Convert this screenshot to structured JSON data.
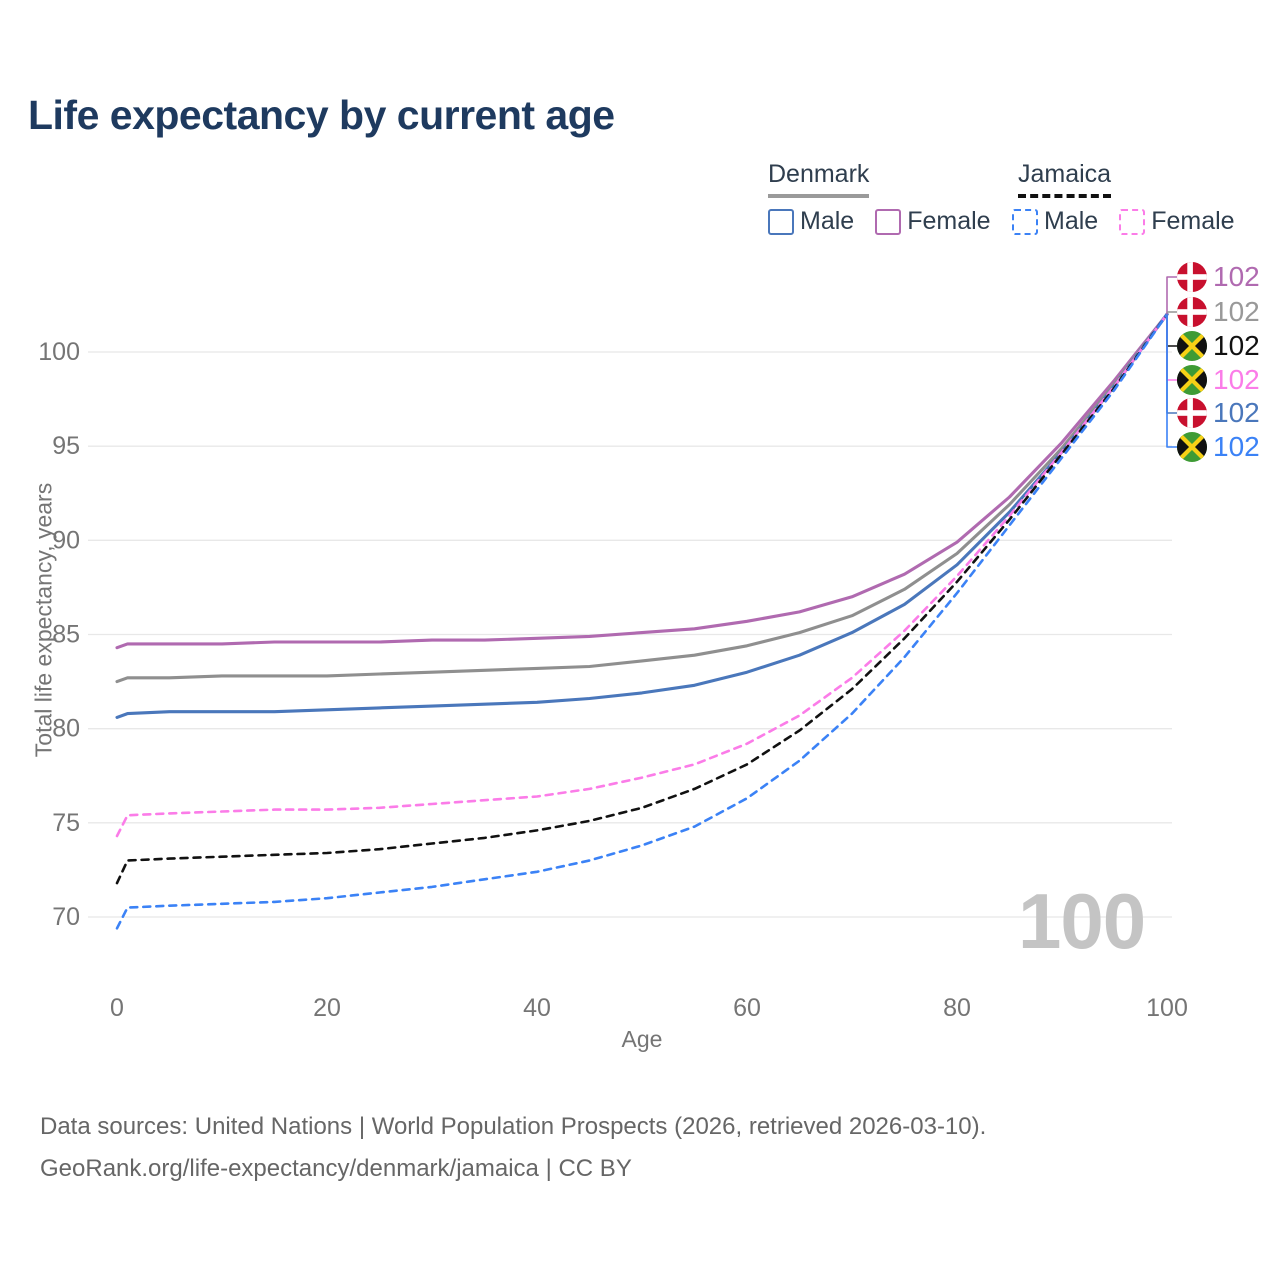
{
  "title": "Life expectancy by current age",
  "colors": {
    "title": "#1e3a5f",
    "axis_text": "#757575",
    "grid": "#e8e8e8",
    "watermark": "#c4c4c4",
    "legend_text": "#2f3e4e",
    "footer_text": "#666666",
    "denmark_underline": "#9a9a9a",
    "jamaica_underline": "#111111",
    "denmark_flag_red": "#c8102e",
    "jamaica_flag_green": "#3e9b35",
    "jamaica_flag_gold": "#f7d116",
    "jamaica_flag_black": "#111111"
  },
  "legend": {
    "groups": [
      {
        "label": "Denmark",
        "underline_color": "#9a9a9a",
        "underline_dashed": false,
        "items": [
          {
            "label": "Male",
            "color": "#4a77bb",
            "dashed": false
          },
          {
            "label": "Female",
            "color": "#b06ab0",
            "dashed": false
          }
        ]
      },
      {
        "label": "Jamaica",
        "underline_color": "#111111",
        "underline_dashed": true,
        "items": [
          {
            "label": "Male",
            "color": "#3b82f6",
            "dashed": true
          },
          {
            "label": "Female",
            "color": "#fb7ce8",
            "dashed": true
          }
        ]
      }
    ]
  },
  "chart_data": {
    "type": "line",
    "title": "Life expectancy by current age",
    "xlabel": "Age",
    "ylabel": "Total life expectancy, years",
    "x_ticks": [
      0,
      20,
      40,
      60,
      80,
      100
    ],
    "y_ticks": [
      70,
      75,
      80,
      85,
      90,
      95,
      100
    ],
    "xlim": [
      0,
      100
    ],
    "ylim": [
      69,
      103
    ],
    "grid": "horizontal",
    "legend_position": "top-right",
    "watermark": "100",
    "ages": [
      0,
      1,
      5,
      10,
      15,
      20,
      25,
      30,
      35,
      40,
      45,
      50,
      55,
      60,
      65,
      70,
      75,
      80,
      85,
      90,
      95,
      100
    ],
    "series": [
      {
        "name": "Denmark Female",
        "country": "Denmark",
        "sex": "Female",
        "color": "#b06ab0",
        "dashed": false,
        "values": [
          84.3,
          84.5,
          84.5,
          84.5,
          84.6,
          84.6,
          84.6,
          84.7,
          84.7,
          84.8,
          84.9,
          85.1,
          85.3,
          85.7,
          86.2,
          87.0,
          88.2,
          89.9,
          92.3,
          95.2,
          98.5,
          102
        ]
      },
      {
        "name": "Denmark Both sexes",
        "country": "Denmark",
        "sex": "Both",
        "color": "#8f8f8f",
        "dashed": false,
        "values": [
          82.5,
          82.7,
          82.7,
          82.8,
          82.8,
          82.8,
          82.9,
          83.0,
          83.1,
          83.2,
          83.3,
          83.6,
          83.9,
          84.4,
          85.1,
          86.0,
          87.4,
          89.3,
          91.9,
          94.9,
          98.3,
          102
        ]
      },
      {
        "name": "Denmark Male",
        "country": "Denmark",
        "sex": "Male",
        "color": "#4a77bb",
        "dashed": false,
        "values": [
          80.6,
          80.8,
          80.9,
          80.9,
          80.9,
          81.0,
          81.1,
          81.2,
          81.3,
          81.4,
          81.6,
          81.9,
          82.3,
          83.0,
          83.9,
          85.1,
          86.6,
          88.7,
          91.5,
          94.7,
          98.2,
          102
        ]
      },
      {
        "name": "Jamaica Female",
        "country": "Jamaica",
        "sex": "Female",
        "color": "#fb7ce8",
        "dashed": true,
        "values": [
          74.3,
          75.4,
          75.5,
          75.6,
          75.7,
          75.7,
          75.8,
          76.0,
          76.2,
          76.4,
          76.8,
          77.4,
          78.1,
          79.2,
          80.7,
          82.7,
          85.2,
          88.1,
          91.3,
          94.7,
          98.2,
          102
        ]
      },
      {
        "name": "Jamaica Both sexes",
        "country": "Jamaica",
        "sex": "Both",
        "color": "#111111",
        "dashed": true,
        "values": [
          71.8,
          73.0,
          73.1,
          73.2,
          73.3,
          73.4,
          73.6,
          73.9,
          74.2,
          74.6,
          75.1,
          75.8,
          76.8,
          78.1,
          79.9,
          82.1,
          84.8,
          87.8,
          91.1,
          94.6,
          98.1,
          102
        ]
      },
      {
        "name": "Jamaica Male",
        "country": "Jamaica",
        "sex": "Male",
        "color": "#3b82f6",
        "dashed": true,
        "values": [
          69.4,
          70.5,
          70.6,
          70.7,
          70.8,
          71.0,
          71.3,
          71.6,
          72.0,
          72.4,
          73.0,
          73.8,
          74.8,
          76.3,
          78.3,
          80.8,
          83.8,
          87.2,
          90.8,
          94.4,
          98.0,
          102
        ]
      }
    ],
    "end_labels": [
      {
        "flag": "denmark",
        "value": "102",
        "color": "#b06ab0",
        "series": "Denmark Female"
      },
      {
        "flag": "denmark",
        "value": "102",
        "color": "#999999",
        "series": "Denmark Both sexes"
      },
      {
        "flag": "jamaica",
        "value": "102",
        "color": "#111111",
        "series": "Jamaica Both sexes"
      },
      {
        "flag": "jamaica",
        "value": "102",
        "color": "#fb7ce8",
        "series": "Jamaica Female"
      },
      {
        "flag": "denmark",
        "value": "102",
        "color": "#4a77bb",
        "series": "Denmark Male"
      },
      {
        "flag": "jamaica",
        "value": "102",
        "color": "#3b82f6",
        "series": "Jamaica Male"
      }
    ]
  },
  "footer": {
    "line1": "Data sources: United Nations | World Population Prospects (2026, retrieved 2026-03-10).",
    "line2": "GeoRank.org/life-expectancy/denmark/jamaica | CC BY"
  }
}
